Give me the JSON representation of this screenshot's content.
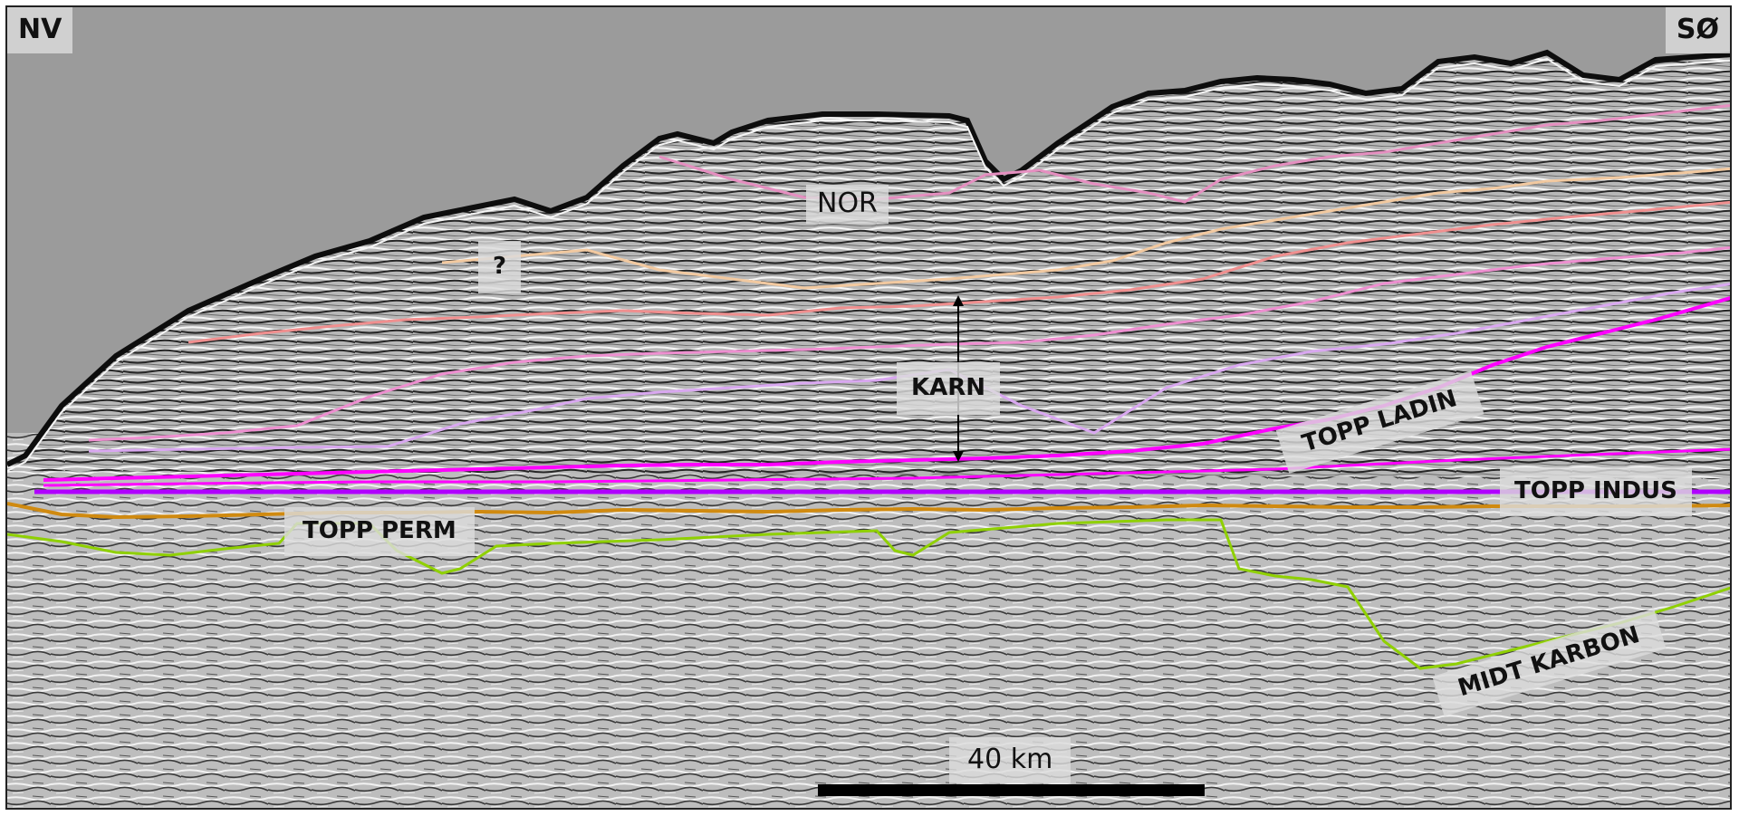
{
  "labels": {
    "nw": "NV",
    "se": "SØ",
    "nor": "NOR",
    "question": "?",
    "karn": "KARN",
    "topp_ladin": "TOPP LADIN",
    "topp_indus": "TOPP INDUS",
    "topp_perm": "TOPP PERM",
    "midt_karbon": "MIDT KARBON",
    "scale": "40 km"
  },
  "horizons": [
    {
      "color": "#e58fc0"
    },
    {
      "color": "#f2c9a0"
    },
    {
      "color": "#f08f8f"
    },
    {
      "color": "#ee8fd0"
    },
    {
      "color": "#d9a8f0"
    },
    {
      "color": "#ff00ff"
    },
    {
      "color": "#b000ff"
    },
    {
      "color": "#d08a10"
    },
    {
      "color": "#8fd000"
    }
  ]
}
